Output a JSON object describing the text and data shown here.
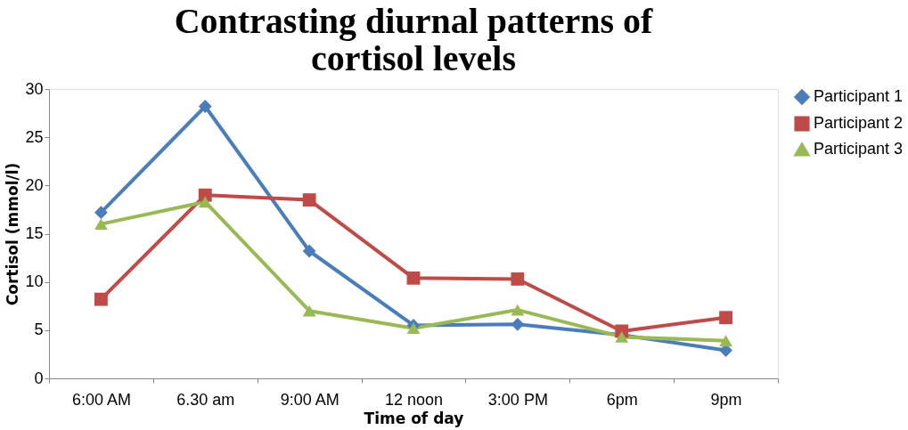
{
  "chart_data": {
    "type": "line",
    "title": "Contrasting diurnal patterns of cortisol levels",
    "xlabel": "Time of day",
    "ylabel": "Cortisol (mmol/l)",
    "categories": [
      "6:00 AM",
      "6.30 am",
      "9:00 AM",
      "12 noon",
      "3:00 PM",
      "6pm",
      "9pm"
    ],
    "series": [
      {
        "name": "Participant 1",
        "color": "#4a7ebb",
        "marker": "diamond",
        "values": [
          17.2,
          28.2,
          13.2,
          5.5,
          5.6,
          4.5,
          2.9
        ]
      },
      {
        "name": "Participant 2",
        "color": "#be4b48",
        "marker": "square",
        "values": [
          8.2,
          19.0,
          18.5,
          10.4,
          10.3,
          4.9,
          6.3
        ]
      },
      {
        "name": "Participant 3",
        "color": "#98b954",
        "marker": "triangle",
        "values": [
          16.0,
          18.3,
          7.0,
          5.2,
          7.1,
          4.3,
          3.9
        ]
      }
    ],
    "ylim": [
      0,
      30
    ],
    "yticks": [
      0,
      5,
      10,
      15,
      20,
      25,
      30
    ],
    "grid": false,
    "legend": "right",
    "line_style": "solid"
  }
}
